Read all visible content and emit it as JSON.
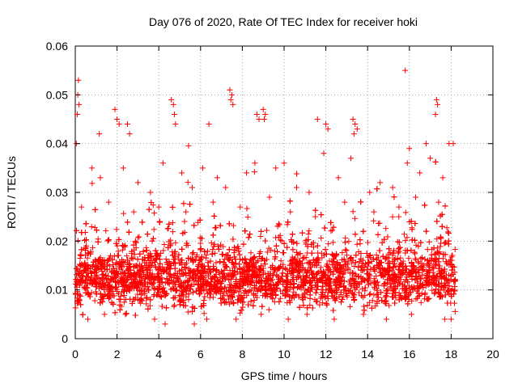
{
  "chart_data": {
    "type": "scatter",
    "title": "Day 076 of 2020, Rate Of TEC Index for receiver hoki",
    "xlabel": "GPS time / hours",
    "ylabel": "ROTI / TECUs",
    "xlim": [
      0,
      20
    ],
    "ylim": [
      0,
      0.06
    ],
    "xticks": [
      0,
      2,
      4,
      6,
      8,
      10,
      12,
      14,
      16,
      18,
      20
    ],
    "yticks": [
      0,
      0.01,
      0.02,
      0.03,
      0.04,
      0.05,
      0.06
    ],
    "xtick_labels": [
      "0",
      "2",
      "4",
      "6",
      "8",
      "10",
      "12",
      "14",
      "16",
      "18",
      "20"
    ],
    "ytick_labels": [
      "0",
      "0.01",
      "0.02",
      "0.03",
      "0.04",
      "0.05",
      "0.06"
    ],
    "grid": true,
    "marker": "+",
    "color": "#ff0000",
    "data_range": {
      "x": [
        0.0,
        18.2
      ],
      "y_min_typical": 0.004,
      "y_dense_band": [
        0.006,
        0.018
      ]
    },
    "points": [
      [
        0.05,
        0.04
      ],
      [
        0.15,
        0.053
      ],
      [
        0.12,
        0.05
      ],
      [
        0.18,
        0.048
      ],
      [
        0.1,
        0.046
      ],
      [
        1.15,
        0.042
      ],
      [
        1.9,
        0.047
      ],
      [
        2.0,
        0.045
      ],
      [
        2.1,
        0.044
      ],
      [
        2.5,
        0.044
      ],
      [
        2.6,
        0.042
      ],
      [
        4.6,
        0.049
      ],
      [
        4.7,
        0.048
      ],
      [
        4.75,
        0.046
      ],
      [
        4.8,
        0.044
      ],
      [
        6.4,
        0.044
      ],
      [
        7.4,
        0.051
      ],
      [
        7.5,
        0.05
      ],
      [
        7.45,
        0.049
      ],
      [
        7.55,
        0.048
      ],
      [
        8.7,
        0.046
      ],
      [
        8.8,
        0.045
      ],
      [
        9.0,
        0.047
      ],
      [
        9.1,
        0.046
      ],
      [
        9.05,
        0.045
      ],
      [
        11.6,
        0.045
      ],
      [
        12.0,
        0.044
      ],
      [
        12.1,
        0.043
      ],
      [
        13.3,
        0.045
      ],
      [
        13.4,
        0.044
      ],
      [
        13.5,
        0.043
      ],
      [
        13.35,
        0.042
      ],
      [
        15.8,
        0.055
      ],
      [
        16.0,
        0.039
      ],
      [
        16.8,
        0.04
      ],
      [
        17.3,
        0.049
      ],
      [
        17.35,
        0.048
      ],
      [
        17.25,
        0.046
      ],
      [
        17.9,
        0.04
      ],
      [
        18.1,
        0.04
      ],
      [
        0.8,
        0.035
      ],
      [
        1.2,
        0.033
      ],
      [
        2.3,
        0.035
      ],
      [
        3.0,
        0.032
      ],
      [
        3.6,
        0.03
      ],
      [
        4.2,
        0.036
      ],
      [
        5.1,
        0.034
      ],
      [
        5.6,
        0.031
      ],
      [
        6.1,
        0.035
      ],
      [
        6.8,
        0.033
      ],
      [
        7.2,
        0.031
      ],
      [
        8.2,
        0.034
      ],
      [
        8.6,
        0.036
      ],
      [
        9.6,
        0.035
      ],
      [
        10.0,
        0.036
      ],
      [
        10.6,
        0.031
      ],
      [
        11.2,
        0.03
      ],
      [
        11.9,
        0.038
      ],
      [
        12.6,
        0.033
      ],
      [
        13.2,
        0.037
      ],
      [
        14.1,
        0.03
      ],
      [
        14.6,
        0.032
      ],
      [
        15.2,
        0.031
      ],
      [
        15.9,
        0.036
      ],
      [
        16.5,
        0.034
      ],
      [
        17.0,
        0.037
      ],
      [
        17.6,
        0.033
      ],
      [
        0.3,
        0.027
      ],
      [
        1.6,
        0.028
      ],
      [
        2.8,
        0.026
      ],
      [
        4.0,
        0.027
      ],
      [
        5.3,
        0.026
      ],
      [
        6.6,
        0.028
      ],
      [
        7.9,
        0.027
      ],
      [
        9.3,
        0.029
      ],
      [
        10.3,
        0.026
      ],
      [
        11.5,
        0.025
      ],
      [
        12.9,
        0.028
      ],
      [
        14.3,
        0.026
      ],
      [
        15.5,
        0.027
      ],
      [
        16.3,
        0.029
      ],
      [
        17.4,
        0.028
      ],
      [
        0.6,
        0.004
      ],
      [
        1.4,
        0.005
      ],
      [
        2.4,
        0.005
      ],
      [
        3.8,
        0.004
      ],
      [
        4.3,
        0.003
      ],
      [
        5.7,
        0.003
      ],
      [
        6.3,
        0.004
      ],
      [
        7.7,
        0.004
      ],
      [
        8.9,
        0.005
      ],
      [
        10.2,
        0.004
      ],
      [
        11.1,
        0.005
      ],
      [
        12.4,
        0.004
      ],
      [
        13.8,
        0.005
      ],
      [
        14.9,
        0.004
      ],
      [
        16.1,
        0.005
      ],
      [
        17.7,
        0.004
      ],
      [
        18.0,
        0.004
      ]
    ]
  }
}
